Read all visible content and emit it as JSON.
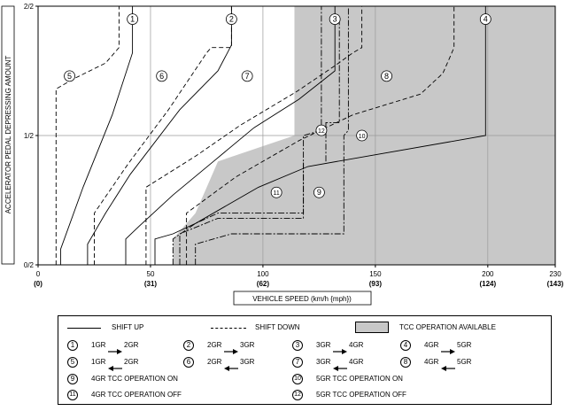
{
  "chart_data": {
    "type": "line",
    "ylabel": "ACCELERATOR PEDAL DEPRESSING AMOUNT",
    "xlabel": "VEHICLE SPEED (km/h {mph})",
    "ylim": [
      "0/2",
      "2/2"
    ],
    "y_ticks": [
      "0/2",
      "1/2",
      "2/2"
    ],
    "x_ticks": [
      {
        "value": "0",
        "sub": "(0)"
      },
      {
        "value": "50",
        "sub": "(31)"
      },
      {
        "value": "100",
        "sub": "(62)"
      },
      {
        "value": "150",
        "sub": "(93)"
      },
      {
        "value": "200",
        "sub": "(124)"
      },
      {
        "value": "230",
        "sub": "(143)"
      }
    ],
    "xlim": [
      0,
      230
    ],
    "grid": true,
    "tcc_region": [
      [
        114,
        1.0
      ],
      [
        114,
        0.5
      ],
      [
        80,
        0.4
      ],
      [
        70,
        0.2
      ],
      [
        60,
        0.1
      ],
      [
        60,
        0.0
      ],
      [
        230,
        0.0
      ],
      [
        230,
        1.0
      ]
    ],
    "series": [
      {
        "name": "1",
        "style": "solid",
        "label_at": [
          42,
          0.95
        ],
        "points": [
          [
            10,
            0
          ],
          [
            10,
            0.06
          ],
          [
            20,
            0.3
          ],
          [
            33,
            0.58
          ],
          [
            42,
            0.82
          ],
          [
            42,
            1.0
          ]
        ]
      },
      {
        "name": "2",
        "style": "solid",
        "label_at": [
          86,
          0.95
        ],
        "points": [
          [
            22,
            0
          ],
          [
            22,
            0.08
          ],
          [
            30,
            0.2
          ],
          [
            41,
            0.35
          ],
          [
            63,
            0.6
          ],
          [
            80,
            0.75
          ],
          [
            86,
            0.85
          ],
          [
            86,
            1.0
          ]
        ]
      },
      {
        "name": "3",
        "style": "solid",
        "label_at": [
          132,
          0.95
        ],
        "points": [
          [
            39,
            0
          ],
          [
            39,
            0.1
          ],
          [
            45,
            0.15
          ],
          [
            60,
            0.27
          ],
          [
            78,
            0.4
          ],
          [
            96,
            0.53
          ],
          [
            116,
            0.64
          ],
          [
            132,
            0.75
          ],
          [
            132,
            1.0
          ]
        ]
      },
      {
        "name": "4",
        "style": "solid",
        "label_at": [
          199,
          0.95
        ],
        "points": [
          [
            52,
            0
          ],
          [
            52,
            0.1
          ],
          [
            60,
            0.12
          ],
          [
            70,
            0.16
          ],
          [
            98,
            0.3
          ],
          [
            120,
            0.38
          ],
          [
            199,
            0.5
          ],
          [
            199,
            1.0
          ]
        ]
      },
      {
        "name": "5",
        "style": "dashed",
        "label_at": [
          14,
          0.73
        ],
        "points": [
          [
            8,
            0
          ],
          [
            8,
            0.68
          ],
          [
            16,
            0.72
          ],
          [
            30,
            0.78
          ],
          [
            36,
            0.84
          ],
          [
            36,
            1.0
          ]
        ]
      },
      {
        "name": "6",
        "style": "dashed",
        "label_at": [
          55,
          0.73
        ],
        "points": [
          [
            25,
            0
          ],
          [
            25,
            0.2
          ],
          [
            40,
            0.39
          ],
          [
            58,
            0.6
          ],
          [
            75,
            0.82
          ],
          [
            77,
            0.84
          ],
          [
            86,
            0.84
          ],
          [
            86,
            1.0
          ]
        ]
      },
      {
        "name": "7",
        "style": "dashed",
        "label_at": [
          93,
          0.73
        ],
        "points": [
          [
            48,
            0
          ],
          [
            48,
            0.3
          ],
          [
            70,
            0.42
          ],
          [
            90,
            0.54
          ],
          [
            115,
            0.67
          ],
          [
            132,
            0.77
          ],
          [
            140,
            0.82
          ],
          [
            144,
            0.84
          ],
          [
            144,
            1.0
          ]
        ]
      },
      {
        "name": "8",
        "style": "dashed",
        "label_at": [
          155,
          0.73
        ],
        "points": [
          [
            66,
            0
          ],
          [
            66,
            0.2
          ],
          [
            88,
            0.34
          ],
          [
            116,
            0.48
          ],
          [
            140,
            0.58
          ],
          [
            170,
            0.66
          ],
          [
            180,
            0.74
          ],
          [
            183,
            0.8
          ],
          [
            185,
            0.84
          ],
          [
            185,
            1.0
          ]
        ]
      },
      {
        "name": "9",
        "style": "dashdot",
        "label_at": [
          125,
          0.28
        ],
        "points": [
          [
            60,
            0
          ],
          [
            60,
            0.1
          ],
          [
            70,
            0.16
          ],
          [
            80,
            0.2
          ],
          [
            118,
            0.2
          ],
          [
            118,
            0.5
          ],
          [
            126,
            0.52
          ],
          [
            126,
            1.0
          ]
        ]
      },
      {
        "name": "10",
        "style": "dashdot",
        "label_at": [
          144,
          0.5
        ],
        "points": [
          [
            70,
            0
          ],
          [
            70,
            0.08
          ],
          [
            86,
            0.12
          ],
          [
            136,
            0.12
          ],
          [
            136,
            0.5
          ],
          [
            138,
            0.52
          ],
          [
            138,
            1.0
          ]
        ]
      },
      {
        "name": "11",
        "style": "dashdot",
        "label_at": [
          106,
          0.28
        ],
        "points": [
          [
            63,
            0
          ],
          [
            63,
            0.12
          ],
          [
            80,
            0.18
          ],
          [
            118,
            0.18
          ],
          [
            118,
            0.4
          ]
        ]
      },
      {
        "name": "12",
        "style": "dashdot",
        "label_at": [
          126,
          0.52
        ],
        "points": [
          [
            128,
            0.4
          ],
          [
            128,
            0.55
          ],
          [
            134,
            0.55
          ],
          [
            134,
            0.95
          ]
        ]
      }
    ]
  },
  "legend": {
    "shift_up": "SHIFT UP",
    "shift_down": "SHIFT DOWN",
    "tcc_available": "TCC OPERATION AVAILABLE",
    "items": [
      {
        "num": "1",
        "from": "1GR",
        "to": "2GR",
        "dir": "right"
      },
      {
        "num": "2",
        "from": "2GR",
        "to": "3GR",
        "dir": "right"
      },
      {
        "num": "3",
        "from": "3GR",
        "to": "4GR",
        "dir": "right"
      },
      {
        "num": "4",
        "from": "4GR",
        "to": "5GR",
        "dir": "right"
      },
      {
        "num": "5",
        "from": "1GR",
        "to": "2GR",
        "dir": "left"
      },
      {
        "num": "6",
        "from": "2GR",
        "to": "3GR",
        "dir": "left"
      },
      {
        "num": "7",
        "from": "3GR",
        "to": "4GR",
        "dir": "left"
      },
      {
        "num": "8",
        "from": "4GR",
        "to": "5GR",
        "dir": "left"
      }
    ],
    "text_items": [
      {
        "num": "9",
        "text": "4GR TCC OPERATION ON"
      },
      {
        "num": "10",
        "text": "5GR TCC OPERATION ON"
      },
      {
        "num": "11",
        "text": "4GR TCC OPERATION OFF"
      },
      {
        "num": "12",
        "text": "5GR TCC OPERATION OFF"
      }
    ]
  }
}
